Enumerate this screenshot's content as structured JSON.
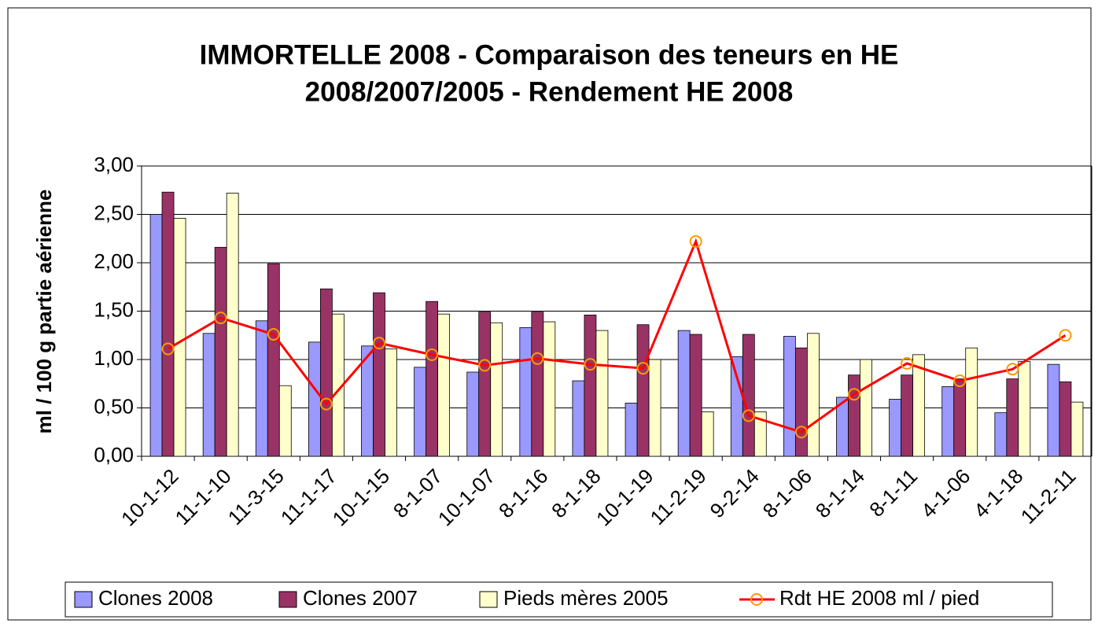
{
  "chart_data": {
    "type": "bar",
    "title": [
      "IMMORTELLE 2008 - Comparaison des teneurs en HE",
      "2008/2007/2005 - Rendement HE 2008"
    ],
    "y_label": "ml / 100 g partie aérienne",
    "categories": [
      "10-1-12",
      "11-1-10",
      "11-3-15",
      "11-1-17",
      "10-1-15",
      "8-1-07",
      "10-1-07",
      "8-1-16",
      "8-1-18",
      "10-1-19",
      "11-2-19",
      "9-2-14",
      "8-1-06",
      "8-1-14",
      "8-1-11",
      "4-1-06",
      "4-1-18",
      "11-2-11"
    ],
    "series": [
      {
        "name": "Clones 2008",
        "color": "#9999ff",
        "type": "bar",
        "values": [
          2.5,
          1.27,
          1.4,
          1.18,
          1.14,
          0.92,
          0.87,
          1.33,
          0.78,
          0.55,
          1.3,
          1.03,
          1.24,
          0.61,
          0.59,
          0.72,
          0.45,
          0.95
        ]
      },
      {
        "name": "Clones 2007",
        "color": "#993366",
        "type": "bar",
        "values": [
          2.73,
          2.16,
          1.99,
          1.73,
          1.69,
          1.6,
          1.49,
          1.49,
          1.46,
          1.36,
          1.26,
          1.26,
          1.12,
          0.84,
          0.84,
          0.8,
          0.8,
          0.77
        ]
      },
      {
        "name": "Pieds mères 2005",
        "color": "#ffffcc",
        "type": "bar",
        "values": [
          2.46,
          2.72,
          0.73,
          1.47,
          1.11,
          1.47,
          1.38,
          1.39,
          1.3,
          1.0,
          0.46,
          0.46,
          1.27,
          1.0,
          1.05,
          1.12,
          0.98,
          0.56
        ]
      },
      {
        "name": "Rdt HE 2008 ml / pied",
        "color": "#ff0000",
        "marker_color": "#ff9900",
        "type": "line",
        "values": [
          1.11,
          1.43,
          1.26,
          0.54,
          1.17,
          1.05,
          0.94,
          1.01,
          0.95,
          0.91,
          2.22,
          0.42,
          0.25,
          0.64,
          0.96,
          0.78,
          0.9,
          1.25
        ]
      }
    ],
    "ylim": [
      0,
      3
    ],
    "yticks": [
      {
        "value": 0,
        "label": "0,00"
      },
      {
        "value": 0.5,
        "label": "0,50"
      },
      {
        "value": 1,
        "label": "1,00"
      },
      {
        "value": 1.5,
        "label": "1,50"
      },
      {
        "value": 2,
        "label": "2,00"
      },
      {
        "value": 2.5,
        "label": "2,50"
      },
      {
        "value": 3,
        "label": "3,00"
      }
    ],
    "grid": true,
    "legend": "bottom"
  }
}
